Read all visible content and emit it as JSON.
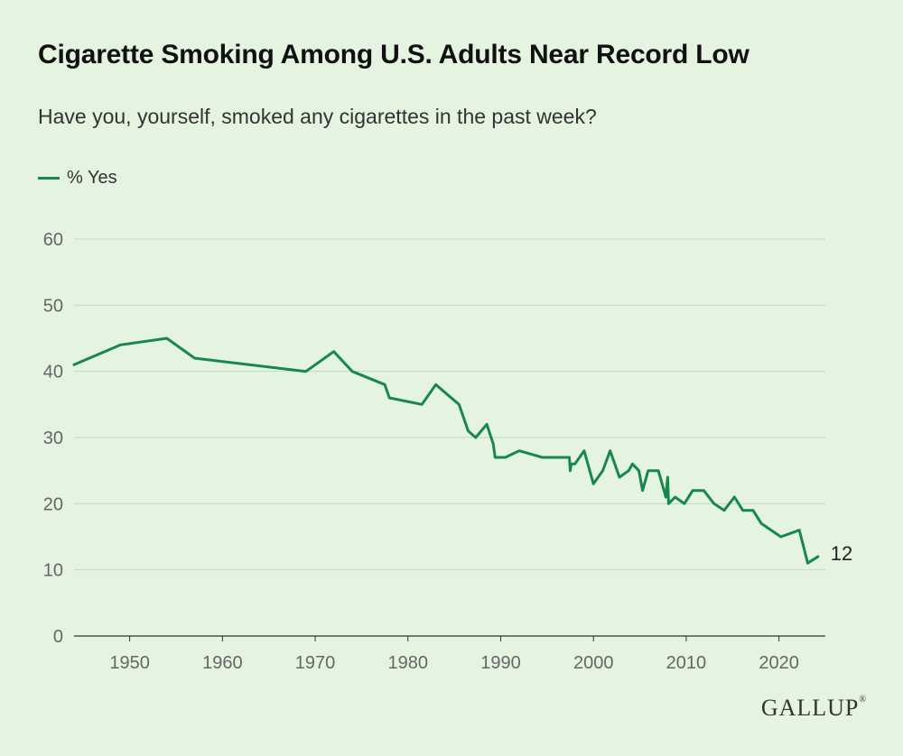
{
  "chart_data": {
    "type": "line",
    "title": "Cigarette Smoking Among U.S. Adults Near Record Low",
    "subtitle": "Have you, yourself, smoked any cigarettes in the past week?",
    "xlabel": "",
    "ylabel": "",
    "xlim": [
      1944,
      2025
    ],
    "ylim": [
      0,
      60
    ],
    "x_ticks": [
      1950,
      1960,
      1970,
      1980,
      1990,
      2000,
      2010,
      2020
    ],
    "y_ticks": [
      0,
      10,
      20,
      30,
      40,
      50,
      60
    ],
    "grid": true,
    "legend": "top-left",
    "color": "#17884a",
    "series": [
      {
        "name": "% Yes",
        "points": [
          [
            1944,
            41
          ],
          [
            1949,
            44
          ],
          [
            1954,
            45
          ],
          [
            1957,
            42
          ],
          [
            1969,
            40
          ],
          [
            1972,
            43
          ],
          [
            1974,
            40
          ],
          [
            1977.5,
            38
          ],
          [
            1978,
            36
          ],
          [
            1981.5,
            35
          ],
          [
            1983,
            38
          ],
          [
            1985.5,
            35
          ],
          [
            1986.5,
            31
          ],
          [
            1987.3,
            30
          ],
          [
            1988.5,
            32
          ],
          [
            1989.2,
            29
          ],
          [
            1989.4,
            27
          ],
          [
            1990.5,
            27
          ],
          [
            1992,
            28
          ],
          [
            1994.5,
            27
          ],
          [
            1997.4,
            27
          ],
          [
            1997.5,
            25
          ],
          [
            1997.6,
            26
          ],
          [
            1998,
            26
          ],
          [
            1999,
            28
          ],
          [
            2000,
            23
          ],
          [
            2001,
            25
          ],
          [
            2001.8,
            28
          ],
          [
            2002.3,
            26
          ],
          [
            2002.8,
            24
          ],
          [
            2003.8,
            25
          ],
          [
            2004.2,
            26
          ],
          [
            2004.9,
            25
          ],
          [
            2005.3,
            22
          ],
          [
            2005.9,
            25
          ],
          [
            2007,
            25
          ],
          [
            2007.6,
            22
          ],
          [
            2007.8,
            21
          ],
          [
            2008,
            24
          ],
          [
            2008.1,
            20
          ],
          [
            2008.8,
            21
          ],
          [
            2009.8,
            20
          ],
          [
            2010.7,
            22
          ],
          [
            2011.9,
            22
          ],
          [
            2013,
            20
          ],
          [
            2014.1,
            19
          ],
          [
            2015.2,
            21
          ],
          [
            2016.1,
            19
          ],
          [
            2017.2,
            19
          ],
          [
            2018.1,
            17
          ],
          [
            2020.2,
            15
          ],
          [
            2022.2,
            16
          ],
          [
            2023.1,
            11
          ],
          [
            2024.2,
            12
          ]
        ]
      }
    ],
    "annotations": [
      {
        "text": "12",
        "x": 2024.2,
        "y": 12
      }
    ]
  },
  "legend_label": "% Yes",
  "end_label": "12",
  "brand": {
    "name": "GALLUP",
    "mark": "®"
  }
}
